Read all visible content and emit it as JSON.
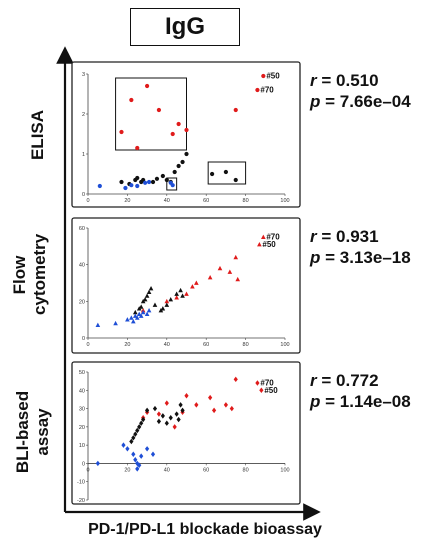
{
  "figure": {
    "title": "IgG",
    "x_axis_label": "PD-1/PD-L1 blockade bioassay"
  },
  "colors": {
    "red": "#e01b1b",
    "black": "#111111",
    "blue": "#1f4fd6"
  },
  "chart_data": [
    {
      "type": "scatter",
      "row_label": "ELISA",
      "marker": "circle",
      "stats": {
        "r_label": "r",
        "r_value": "= 0.510",
        "p_label": "p",
        "p_value": "= 7.66e–04"
      },
      "xlim": [
        0,
        100
      ],
      "ylim": [
        0,
        3
      ],
      "x_ticks": [
        "0",
        "20",
        "40",
        "60",
        "80",
        "100"
      ],
      "y_ticks": [
        "0",
        "1",
        "2",
        "3"
      ],
      "annotations": [
        "#50",
        "#70"
      ],
      "series": [
        {
          "color": "red",
          "points": [
            [
              17,
              1.55
            ],
            [
              22,
              2.35
            ],
            [
              25,
              1.15
            ],
            [
              30,
              2.7
            ],
            [
              36,
              2.1
            ],
            [
              43,
              1.5
            ],
            [
              46,
              1.75
            ],
            [
              50,
              1.6
            ],
            [
              75,
              2.1
            ],
            [
              89,
              2.95
            ],
            [
              86,
              2.6
            ]
          ]
        },
        {
          "color": "black",
          "points": [
            [
              17,
              0.3
            ],
            [
              21,
              0.25
            ],
            [
              24,
              0.35
            ],
            [
              25,
              0.4
            ],
            [
              27,
              0.3
            ],
            [
              28,
              0.35
            ],
            [
              33,
              0.3
            ],
            [
              35,
              0.38
            ],
            [
              38,
              0.45
            ],
            [
              40,
              0.35
            ],
            [
              42,
              0.3
            ],
            [
              44,
              0.55
            ],
            [
              46,
              0.7
            ],
            [
              48,
              0.8
            ],
            [
              50,
              1.0
            ],
            [
              63,
              0.5
            ],
            [
              70,
              0.55
            ],
            [
              75,
              0.35
            ]
          ]
        },
        {
          "color": "blue",
          "points": [
            [
              6,
              0.2
            ],
            [
              19,
              0.15
            ],
            [
              22,
              0.22
            ],
            [
              25,
              0.2
            ],
            [
              29,
              0.28
            ],
            [
              31,
              0.3
            ],
            [
              42,
              0.28
            ],
            [
              43,
              0.22
            ]
          ]
        }
      ],
      "boxes": [
        [
          14,
          1.1,
          50,
          2.9
        ],
        [
          61,
          0.25,
          80,
          0.8
        ],
        [
          40,
          0.1,
          45,
          0.4
        ]
      ]
    },
    {
      "type": "scatter",
      "row_label": "Flow cytometry",
      "marker": "triangle",
      "stats": {
        "r_label": "r",
        "r_value": "= 0.931",
        "p_label": "p",
        "p_value": "= 3.13e–18"
      },
      "xlim": [
        0,
        100
      ],
      "ylim": [
        0,
        60
      ],
      "x_ticks": [
        "0",
        "20",
        "40",
        "60",
        "80",
        "100"
      ],
      "y_ticks": [
        "0",
        "20",
        "40",
        "60"
      ],
      "annotations": [
        "#70",
        "#50"
      ],
      "series": [
        {
          "color": "red",
          "points": [
            [
              28,
              15
            ],
            [
              40,
              20
            ],
            [
              45,
              22
            ],
            [
              50,
              24
            ],
            [
              53,
              28
            ],
            [
              55,
              30
            ],
            [
              62,
              33
            ],
            [
              67,
              38
            ],
            [
              72,
              36
            ],
            [
              75,
              44
            ],
            [
              76,
              32
            ],
            [
              89,
              55
            ],
            [
              87,
              51
            ]
          ]
        },
        {
          "color": "black",
          "points": [
            [
              24,
              14
            ],
            [
              26,
              16
            ],
            [
              27,
              17
            ],
            [
              28,
              20
            ],
            [
              29,
              21
            ],
            [
              30,
              23
            ],
            [
              31,
              25
            ],
            [
              32,
              27
            ],
            [
              34,
              18
            ],
            [
              37,
              15
            ],
            [
              38,
              16
            ],
            [
              40,
              18
            ],
            [
              42,
              21
            ],
            [
              45,
              24
            ],
            [
              47,
              26
            ],
            [
              48,
              23
            ]
          ]
        },
        {
          "color": "blue",
          "points": [
            [
              5,
              7
            ],
            [
              14,
              8
            ],
            [
              20,
              10
            ],
            [
              22,
              11
            ],
            [
              23,
              9
            ],
            [
              24,
              12
            ],
            [
              25,
              11
            ],
            [
              26,
              13
            ],
            [
              27,
              12
            ],
            [
              28,
              14
            ],
            [
              30,
              13
            ],
            [
              31,
              15
            ]
          ]
        }
      ]
    },
    {
      "type": "scatter",
      "row_label": "BLI-based assay",
      "marker": "diamond",
      "stats": {
        "r_label": "r",
        "r_value": "= 0.772",
        "p_label": "p",
        "p_value": "= 1.14e–08"
      },
      "xlim": [
        0,
        100
      ],
      "ylim": [
        -20,
        50
      ],
      "x_ticks": [
        "0",
        "20",
        "40",
        "60",
        "80",
        "100"
      ],
      "y_ticks": [
        "50",
        "40",
        "30",
        "20",
        "10",
        "0",
        "-10",
        "-20"
      ],
      "annotations": [
        "#70",
        "#50"
      ],
      "series": [
        {
          "color": "red",
          "points": [
            [
              28,
              25
            ],
            [
              30,
              28
            ],
            [
              36,
              27
            ],
            [
              40,
              33
            ],
            [
              44,
              20
            ],
            [
              48,
              28
            ],
            [
              50,
              37
            ],
            [
              55,
              32
            ],
            [
              62,
              36
            ],
            [
              64,
              29
            ],
            [
              70,
              32
            ],
            [
              73,
              30
            ],
            [
              75,
              46
            ],
            [
              86,
              44
            ],
            [
              88,
              40
            ]
          ]
        },
        {
          "color": "black",
          "points": [
            [
              22,
              12
            ],
            [
              23,
              14
            ],
            [
              24,
              16
            ],
            [
              25,
              18
            ],
            [
              26,
              20
            ],
            [
              27,
              22
            ],
            [
              28,
              24
            ],
            [
              30,
              29
            ],
            [
              34,
              30
            ],
            [
              36,
              23
            ],
            [
              38,
              26
            ],
            [
              40,
              22
            ],
            [
              42,
              25
            ],
            [
              45,
              27
            ],
            [
              46,
              24
            ],
            [
              47,
              32
            ],
            [
              48,
              29
            ]
          ]
        },
        {
          "color": "blue",
          "points": [
            [
              5,
              0
            ],
            [
              18,
              10
            ],
            [
              20,
              8
            ],
            [
              23,
              5
            ],
            [
              24,
              2
            ],
            [
              25,
              0
            ],
            [
              25,
              -3
            ],
            [
              26,
              -1
            ],
            [
              27,
              4
            ],
            [
              30,
              8
            ],
            [
              33,
              5
            ]
          ]
        }
      ]
    }
  ]
}
